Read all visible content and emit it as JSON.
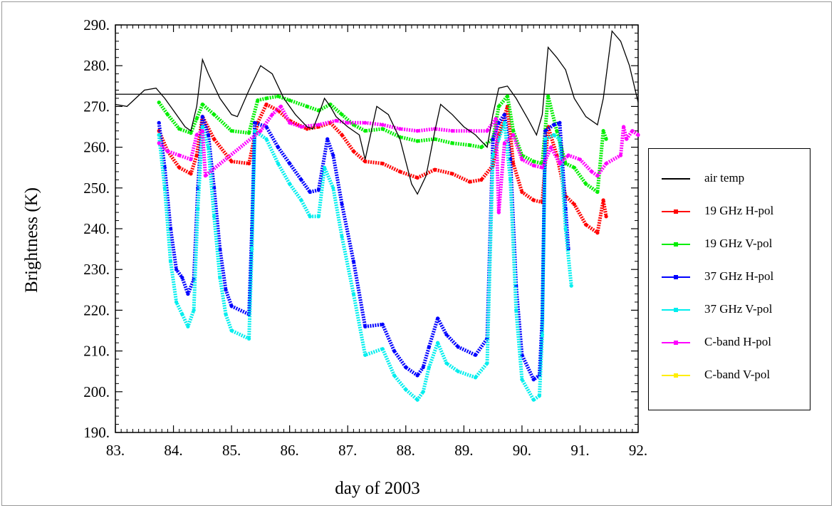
{
  "chart_data": {
    "type": "scatter",
    "title": "",
    "xlabel": "day of 2003",
    "ylabel": "Brightness (K)",
    "xlim": [
      83,
      92
    ],
    "ylim": [
      190,
      290
    ],
    "x_ticks": [
      "83.",
      "84.",
      "85.",
      "86.",
      "87.",
      "88.",
      "89.",
      "90.",
      "91.",
      "92."
    ],
    "y_ticks": [
      "190.",
      "200.",
      "210.",
      "220.",
      "230.",
      "240.",
      "250.",
      "260.",
      "270.",
      "280.",
      "290."
    ],
    "reference_line": 273,
    "legend_placement": "right",
    "series": [
      {
        "name": "air temp",
        "color": "#000000",
        "style": "line",
        "points": [
          [
            83.0,
            270.5
          ],
          [
            83.2,
            270.0
          ],
          [
            83.35,
            272.0
          ],
          [
            83.5,
            274.0
          ],
          [
            83.7,
            274.5
          ],
          [
            83.85,
            272.0
          ],
          [
            84.0,
            269.0
          ],
          [
            84.2,
            265.0
          ],
          [
            84.3,
            264.0
          ],
          [
            84.4,
            270.0
          ],
          [
            84.5,
            281.5
          ],
          [
            84.6,
            278.0
          ],
          [
            84.8,
            272.0
          ],
          [
            85.0,
            268.0
          ],
          [
            85.1,
            267.5
          ],
          [
            85.3,
            274.0
          ],
          [
            85.5,
            280.0
          ],
          [
            85.7,
            278.0
          ],
          [
            85.9,
            272.0
          ],
          [
            86.1,
            268.0
          ],
          [
            86.3,
            265.0
          ],
          [
            86.4,
            264.5
          ],
          [
            86.5,
            268.0
          ],
          [
            86.6,
            272.0
          ],
          [
            86.7,
            270.0
          ],
          [
            86.8,
            267.5
          ],
          [
            87.0,
            265.0
          ],
          [
            87.2,
            263.0
          ],
          [
            87.3,
            257.0
          ],
          [
            87.5,
            270.0
          ],
          [
            87.7,
            268.0
          ],
          [
            87.9,
            262.0
          ],
          [
            88.1,
            251.0
          ],
          [
            88.2,
            248.5
          ],
          [
            88.35,
            253.0
          ],
          [
            88.5,
            264.0
          ],
          [
            88.6,
            270.5
          ],
          [
            88.8,
            268.0
          ],
          [
            89.0,
            265.0
          ],
          [
            89.2,
            263.0
          ],
          [
            89.4,
            260.0
          ],
          [
            89.5,
            268.0
          ],
          [
            89.6,
            274.5
          ],
          [
            89.75,
            275.0
          ],
          [
            89.9,
            272.0
          ],
          [
            90.1,
            267.0
          ],
          [
            90.25,
            263.0
          ],
          [
            90.35,
            268.0
          ],
          [
            90.45,
            284.5
          ],
          [
            90.6,
            282.0
          ],
          [
            90.75,
            279.0
          ],
          [
            90.9,
            272.0
          ],
          [
            91.1,
            267.5
          ],
          [
            91.3,
            265.5
          ],
          [
            91.4,
            272.0
          ],
          [
            91.55,
            288.5
          ],
          [
            91.7,
            286.0
          ],
          [
            91.85,
            280.0
          ],
          [
            92.0,
            271.0
          ]
        ]
      },
      {
        "name": "19 GHz H-pol",
        "color": "#ff0000",
        "style": "dots",
        "points": [
          [
            83.75,
            264.0
          ],
          [
            83.9,
            259.0
          ],
          [
            84.1,
            255.0
          ],
          [
            84.3,
            253.5
          ],
          [
            84.4,
            258.0
          ],
          [
            84.5,
            267.5
          ],
          [
            84.7,
            262.0
          ],
          [
            85.0,
            256.5
          ],
          [
            85.3,
            256.0
          ],
          [
            85.45,
            266.0
          ],
          [
            85.6,
            270.5
          ],
          [
            85.8,
            269.0
          ],
          [
            86.0,
            266.5
          ],
          [
            86.3,
            264.5
          ],
          [
            86.5,
            265.0
          ],
          [
            86.7,
            266.0
          ],
          [
            86.9,
            263.0
          ],
          [
            87.1,
            259.0
          ],
          [
            87.3,
            256.5
          ],
          [
            87.6,
            256.0
          ],
          [
            87.9,
            254.0
          ],
          [
            88.2,
            252.5
          ],
          [
            88.5,
            254.5
          ],
          [
            88.8,
            253.5
          ],
          [
            89.1,
            251.5
          ],
          [
            89.3,
            252.0
          ],
          [
            89.5,
            255.5
          ],
          [
            89.6,
            263.0
          ],
          [
            89.75,
            270.0
          ],
          [
            89.85,
            256.0
          ],
          [
            90.0,
            249.0
          ],
          [
            90.2,
            247.0
          ],
          [
            90.35,
            246.5
          ],
          [
            90.45,
            265.0
          ],
          [
            90.6,
            258.0
          ],
          [
            90.75,
            248.0
          ],
          [
            90.9,
            246.0
          ],
          [
            91.1,
            241.0
          ],
          [
            91.3,
            239.0
          ],
          [
            91.4,
            247.0
          ],
          [
            91.45,
            243.0
          ]
        ]
      },
      {
        "name": "19 GHz V-pol",
        "color": "#00ee00",
        "style": "dots",
        "points": [
          [
            83.75,
            271.0
          ],
          [
            83.9,
            268.0
          ],
          [
            84.1,
            264.5
          ],
          [
            84.3,
            263.5
          ],
          [
            84.4,
            267.0
          ],
          [
            84.5,
            270.5
          ],
          [
            84.7,
            268.0
          ],
          [
            85.0,
            264.0
          ],
          [
            85.3,
            263.5
          ],
          [
            85.45,
            271.5
          ],
          [
            85.6,
            272.0
          ],
          [
            85.8,
            272.5
          ],
          [
            86.0,
            271.5
          ],
          [
            86.3,
            270.0
          ],
          [
            86.5,
            269.0
          ],
          [
            86.7,
            270.5
          ],
          [
            86.9,
            268.0
          ],
          [
            87.1,
            265.5
          ],
          [
            87.3,
            264.0
          ],
          [
            87.6,
            264.5
          ],
          [
            87.9,
            262.5
          ],
          [
            88.2,
            261.5
          ],
          [
            88.5,
            262.0
          ],
          [
            88.8,
            261.0
          ],
          [
            89.1,
            260.5
          ],
          [
            89.3,
            260.0
          ],
          [
            89.5,
            262.0
          ],
          [
            89.6,
            270.0
          ],
          [
            89.75,
            272.5
          ],
          [
            89.85,
            264.0
          ],
          [
            90.0,
            258.0
          ],
          [
            90.2,
            256.5
          ],
          [
            90.35,
            256.0
          ],
          [
            90.45,
            272.5
          ],
          [
            90.6,
            264.0
          ],
          [
            90.75,
            256.0
          ],
          [
            90.9,
            255.0
          ],
          [
            91.1,
            251.0
          ],
          [
            91.3,
            249.0
          ],
          [
            91.4,
            264.0
          ],
          [
            91.45,
            262.0
          ]
        ]
      },
      {
        "name": "37 GHz H-pol",
        "color": "#0000ff",
        "style": "dots",
        "points": [
          [
            83.75,
            266.0
          ],
          [
            83.85,
            255.0
          ],
          [
            83.95,
            240.0
          ],
          [
            84.05,
            230.0
          ],
          [
            84.15,
            228.0
          ],
          [
            84.25,
            224.0
          ],
          [
            84.35,
            227.5
          ],
          [
            84.42,
            250.0
          ],
          [
            84.5,
            267.5
          ],
          [
            84.6,
            263.0
          ],
          [
            84.7,
            250.0
          ],
          [
            84.8,
            235.0
          ],
          [
            84.9,
            225.0
          ],
          [
            85.0,
            221.0
          ],
          [
            85.3,
            219.0
          ],
          [
            85.35,
            240.0
          ],
          [
            85.4,
            266.0
          ],
          [
            85.6,
            265.0
          ],
          [
            85.8,
            260.0
          ],
          [
            86.0,
            256.0
          ],
          [
            86.2,
            252.0
          ],
          [
            86.35,
            249.0
          ],
          [
            86.5,
            249.5
          ],
          [
            86.65,
            262.0
          ],
          [
            86.75,
            258.0
          ],
          [
            86.9,
            246.0
          ],
          [
            87.1,
            232.0
          ],
          [
            87.3,
            216.0
          ],
          [
            87.6,
            216.5
          ],
          [
            87.8,
            210.0
          ],
          [
            88.0,
            206.0
          ],
          [
            88.2,
            204.0
          ],
          [
            88.3,
            206.0
          ],
          [
            88.4,
            211.0
          ],
          [
            88.55,
            218.0
          ],
          [
            88.7,
            214.0
          ],
          [
            88.9,
            211.0
          ],
          [
            89.2,
            209.0
          ],
          [
            89.4,
            213.0
          ],
          [
            89.5,
            262.0
          ],
          [
            89.6,
            266.0
          ],
          [
            89.7,
            268.0
          ],
          [
            89.8,
            257.0
          ],
          [
            89.9,
            226.0
          ],
          [
            90.0,
            209.0
          ],
          [
            90.2,
            203.0
          ],
          [
            90.3,
            204.0
          ],
          [
            90.35,
            218.0
          ],
          [
            90.4,
            264.0
          ],
          [
            90.55,
            265.5
          ],
          [
            90.65,
            266.0
          ],
          [
            90.75,
            245.0
          ],
          [
            90.8,
            235.0
          ]
        ]
      },
      {
        "name": "37 GHz V-pol",
        "color": "#00eeee",
        "style": "dots",
        "points": [
          [
            83.75,
            263.0
          ],
          [
            83.85,
            250.0
          ],
          [
            83.95,
            232.0
          ],
          [
            84.05,
            222.0
          ],
          [
            84.15,
            219.0
          ],
          [
            84.25,
            216.0
          ],
          [
            84.35,
            220.0
          ],
          [
            84.42,
            245.0
          ],
          [
            84.5,
            265.0
          ],
          [
            84.6,
            260.0
          ],
          [
            84.7,
            243.0
          ],
          [
            84.8,
            228.0
          ],
          [
            84.9,
            219.0
          ],
          [
            85.0,
            215.0
          ],
          [
            85.3,
            213.0
          ],
          [
            85.35,
            235.0
          ],
          [
            85.4,
            264.0
          ],
          [
            85.6,
            262.0
          ],
          [
            85.8,
            256.0
          ],
          [
            86.0,
            251.0
          ],
          [
            86.2,
            247.0
          ],
          [
            86.35,
            243.0
          ],
          [
            86.5,
            243.0
          ],
          [
            86.6,
            255.0
          ],
          [
            86.75,
            250.0
          ],
          [
            86.9,
            238.0
          ],
          [
            87.1,
            224.0
          ],
          [
            87.3,
            209.0
          ],
          [
            87.6,
            210.5
          ],
          [
            87.8,
            204.0
          ],
          [
            88.0,
            200.5
          ],
          [
            88.2,
            198.0
          ],
          [
            88.3,
            200.0
          ],
          [
            88.4,
            206.0
          ],
          [
            88.55,
            212.0
          ],
          [
            88.7,
            207.0
          ],
          [
            88.9,
            205.0
          ],
          [
            89.2,
            203.5
          ],
          [
            89.4,
            207.0
          ],
          [
            89.5,
            258.0
          ],
          [
            89.6,
            262.0
          ],
          [
            89.7,
            266.0
          ],
          [
            89.8,
            252.0
          ],
          [
            89.9,
            220.0
          ],
          [
            90.0,
            203.0
          ],
          [
            90.2,
            198.0
          ],
          [
            90.3,
            199.0
          ],
          [
            90.35,
            214.0
          ],
          [
            90.4,
            262.0
          ],
          [
            90.55,
            263.0
          ],
          [
            90.65,
            262.0
          ],
          [
            90.75,
            240.0
          ],
          [
            90.85,
            226.0
          ]
        ]
      },
      {
        "name": "C-band H-pol",
        "color": "#ff00ff",
        "style": "dots",
        "points": [
          [
            83.75,
            261.0
          ],
          [
            83.9,
            259.0
          ],
          [
            84.1,
            258.0
          ],
          [
            84.3,
            257.0
          ],
          [
            84.4,
            263.0
          ],
          [
            84.5,
            264.0
          ],
          [
            84.55,
            253.0
          ],
          [
            85.5,
            264.0
          ],
          [
            85.7,
            268.0
          ],
          [
            85.85,
            270.0
          ],
          [
            86.0,
            266.0
          ],
          [
            86.2,
            265.0
          ],
          [
            86.5,
            265.5
          ],
          [
            86.8,
            266.5
          ],
          [
            87.0,
            266.0
          ],
          [
            87.3,
            266.0
          ],
          [
            87.6,
            265.5
          ],
          [
            87.9,
            264.5
          ],
          [
            88.2,
            264.0
          ],
          [
            88.5,
            264.5
          ],
          [
            88.8,
            264.0
          ],
          [
            89.1,
            264.0
          ],
          [
            89.4,
            264.0
          ],
          [
            89.55,
            267.0
          ],
          [
            89.6,
            244.0
          ],
          [
            89.7,
            261.0
          ],
          [
            89.85,
            263.0
          ],
          [
            90.0,
            257.0
          ],
          [
            90.2,
            255.5
          ],
          [
            90.35,
            255.0
          ],
          [
            90.5,
            260.0
          ],
          [
            90.65,
            256.0
          ],
          [
            90.8,
            258.0
          ],
          [
            91.0,
            257.0
          ],
          [
            91.2,
            254.0
          ],
          [
            91.3,
            253.0
          ],
          [
            91.45,
            256.0
          ],
          [
            91.7,
            258.0
          ],
          [
            91.75,
            265.0
          ],
          [
            91.8,
            262.0
          ],
          [
            91.9,
            264.0
          ],
          [
            92.0,
            263.0
          ]
        ]
      },
      {
        "name": "C-band V-pol",
        "color": "#ffee00",
        "style": "dots",
        "points": []
      }
    ]
  }
}
